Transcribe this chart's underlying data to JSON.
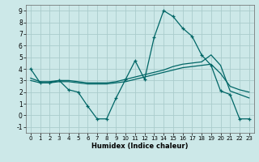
{
  "background_color": "#cce8e8",
  "grid_color": "#aacccc",
  "line_color": "#006666",
  "xlabel": "Humidex (Indice chaleur)",
  "xlim": [
    -0.5,
    23.5
  ],
  "ylim": [
    -1.5,
    9.5
  ],
  "xticks": [
    0,
    1,
    2,
    3,
    4,
    5,
    6,
    7,
    8,
    9,
    10,
    11,
    12,
    13,
    14,
    15,
    16,
    17,
    18,
    19,
    20,
    21,
    22,
    23
  ],
  "yticks": [
    -1,
    0,
    1,
    2,
    3,
    4,
    5,
    6,
    7,
    8,
    9
  ],
  "curve1_x": [
    0,
    1,
    2,
    3,
    4,
    5,
    6,
    7,
    8,
    9,
    10,
    11,
    12,
    13,
    14,
    15,
    16,
    17,
    18,
    19,
    20,
    21,
    22,
    23
  ],
  "curve1_y": [
    4.0,
    2.8,
    2.8,
    3.0,
    2.2,
    2.0,
    0.8,
    -0.3,
    -0.3,
    1.5,
    3.1,
    4.7,
    3.1,
    6.7,
    9.0,
    8.5,
    7.5,
    6.8,
    5.2,
    4.3,
    2.1,
    1.8,
    -0.3,
    -0.3
  ],
  "curve2_x": [
    0,
    1,
    2,
    3,
    4,
    5,
    6,
    7,
    8,
    9,
    10,
    11,
    12,
    13,
    14,
    15,
    16,
    17,
    18,
    19,
    20,
    21,
    22,
    23
  ],
  "curve2_y": [
    3.2,
    2.9,
    2.9,
    3.0,
    3.0,
    2.9,
    2.8,
    2.8,
    2.8,
    2.9,
    3.1,
    3.3,
    3.5,
    3.7,
    3.9,
    4.2,
    4.4,
    4.5,
    4.6,
    5.2,
    4.3,
    2.1,
    1.8,
    1.5
  ],
  "curve3_x": [
    0,
    1,
    2,
    3,
    4,
    5,
    6,
    7,
    8,
    9,
    10,
    11,
    12,
    13,
    14,
    15,
    16,
    17,
    18,
    19,
    20,
    21,
    22,
    23
  ],
  "curve3_y": [
    3.0,
    2.8,
    2.8,
    2.9,
    2.9,
    2.8,
    2.7,
    2.7,
    2.7,
    2.8,
    2.9,
    3.1,
    3.3,
    3.5,
    3.7,
    3.9,
    4.1,
    4.2,
    4.3,
    4.4,
    3.6,
    2.5,
    2.2,
    2.0
  ]
}
